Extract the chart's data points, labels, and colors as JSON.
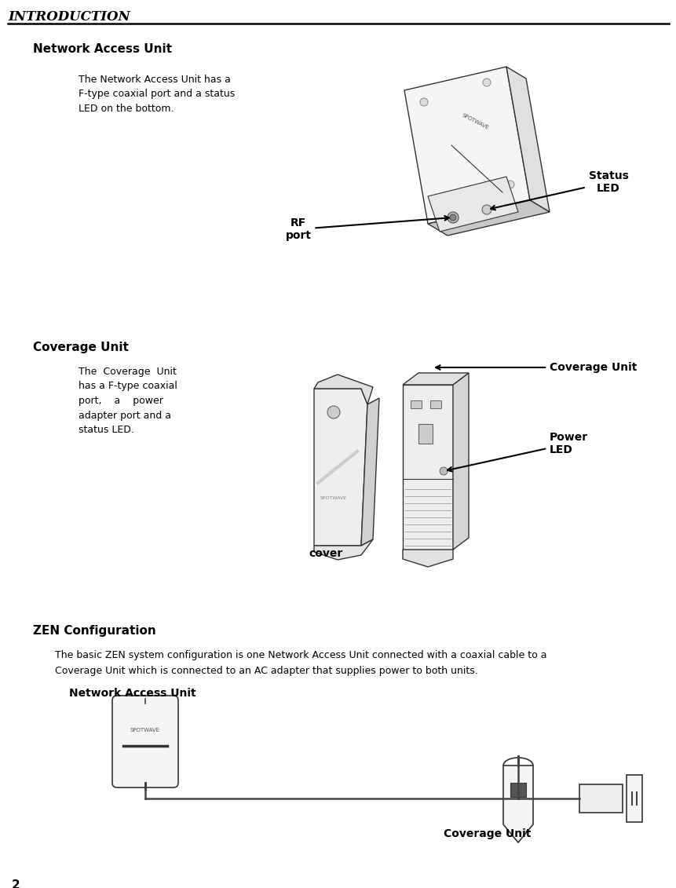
{
  "bg_color": "#ffffff",
  "header_text": "INTRODUCTION",
  "page_number": "2",
  "section1_title": "Network Access Unit",
  "section1_body": "The Network Access Unit has a\nF-type coaxial port and a status\nLED on the bottom.",
  "section1_label_rf": "RF\nport",
  "section1_label_led": "Status\nLED",
  "section2_title": "Coverage Unit",
  "section2_body": "The  Coverage  Unit\nhas a F-type coaxial\nport,    a    power\nadapter port and a\nstatus LED.",
  "section2_label_cu": "Coverage Unit",
  "section2_label_led": "Power\nLED",
  "section2_label_cover": "cover",
  "section3_title": "ZEN Configuration",
  "section3_body1": "The basic ZEN system configuration is one Network Access Unit connected with a coaxial cable to a",
  "section3_body2": "Coverage Unit which is connected to an AC adapter that supplies power to both units.",
  "section3_label_nau": "Network Access Unit",
  "section3_label_cu": "Coverage Unit",
  "lw_device": 1.0,
  "color_face_light": "#f5f5f5",
  "color_face_mid": "#e0e0e0",
  "color_face_dark": "#c8c8c8",
  "color_edge": "#333333",
  "color_line": "#555555"
}
